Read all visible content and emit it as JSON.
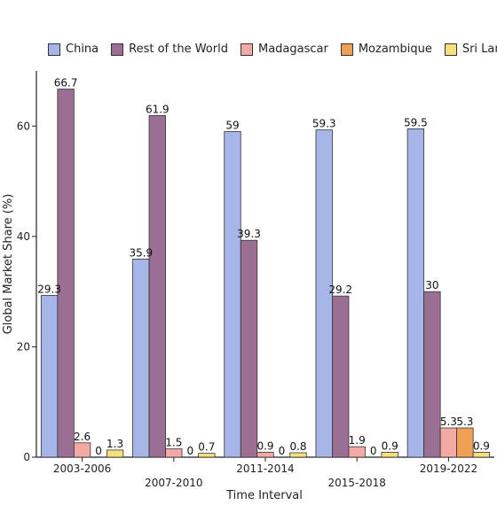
{
  "chart_data": {
    "type": "bar",
    "xlabel": "Time Interval",
    "ylabel": "Global Market Share (%)",
    "ylim": [
      0,
      70
    ],
    "yticks": [
      0,
      20,
      40,
      60
    ],
    "categories": [
      "2003-2006",
      "2007-2010",
      "2011-2014",
      "2015-2018",
      "2019-2022"
    ],
    "legend_position": "top",
    "series": [
      {
        "name": "China",
        "color": "#a6b6e6",
        "values": [
          29.3,
          35.9,
          59,
          59.3,
          59.5
        ]
      },
      {
        "name": "Rest of the World",
        "color": "#9a6f93",
        "values": [
          66.7,
          61.9,
          39.3,
          29.2,
          30
        ]
      },
      {
        "name": "Madagascar",
        "color": "#f4aaa4",
        "values": [
          2.6,
          1.5,
          0.9,
          1.9,
          5.3
        ]
      },
      {
        "name": "Mozambique",
        "color": "#f0a157",
        "values": [
          0,
          0,
          0,
          0,
          5.3
        ]
      },
      {
        "name": "Sri Lanka",
        "color": "#f6e07d",
        "values": [
          1.3,
          0.7,
          0.8,
          0.9,
          0.9
        ]
      }
    ]
  }
}
